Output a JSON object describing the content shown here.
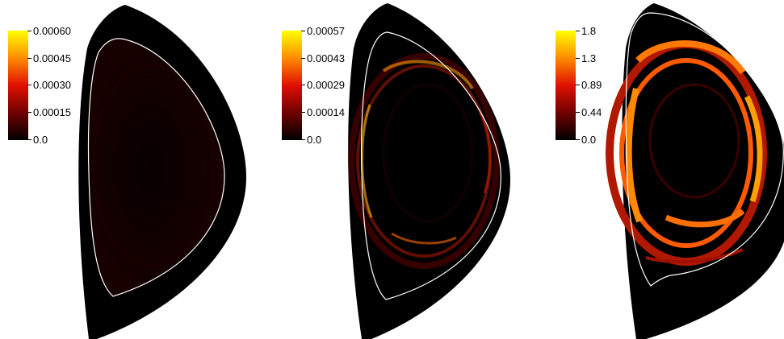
{
  "panels": [
    {
      "name": "panel-1",
      "colorbar_ticks": [
        "0.00060",
        "0.00045",
        "0.00030",
        "0.00015",
        "0.0"
      ],
      "intensity": 0.12
    },
    {
      "name": "panel-2",
      "colorbar_ticks": [
        "0.00057",
        "0.00043",
        "0.00029",
        "0.00014",
        "0.0"
      ],
      "intensity": 0.6
    },
    {
      "name": "panel-3",
      "colorbar_ticks": [
        "1.8",
        "1.3",
        "0.89",
        "0.44",
        "0.0"
      ],
      "intensity": 1.0
    }
  ],
  "colors": {
    "background": "#000000",
    "separatrix": "#ffffff",
    "colormap": [
      "#000000",
      "#700000",
      "#e01000",
      "#ff8c00",
      "#ffff00"
    ]
  }
}
